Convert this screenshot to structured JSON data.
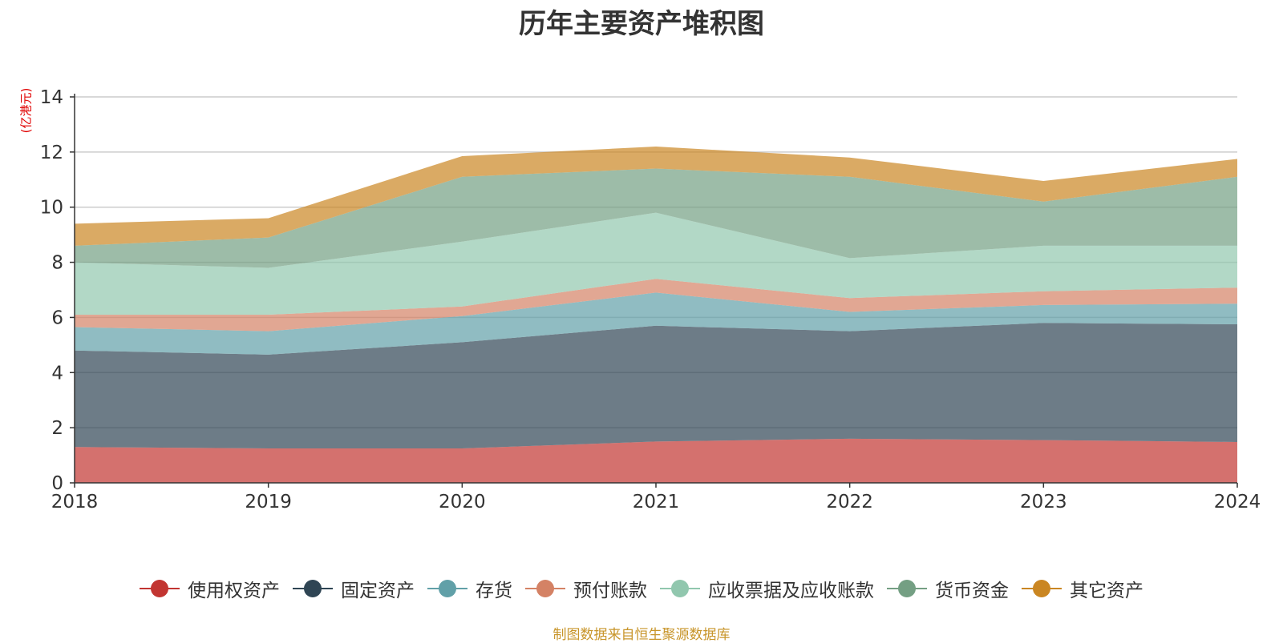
{
  "chart_data": {
    "type": "area",
    "stacked": true,
    "title": "历年主要资产堆积图",
    "y_unit_label": "(亿港元)",
    "x": [
      "2018",
      "2019",
      "2020",
      "2021",
      "2022",
      "2023",
      "2024"
    ],
    "ylim": [
      0,
      14
    ],
    "yticks": [
      0,
      2,
      4,
      6,
      8,
      10,
      12,
      14
    ],
    "grid": true,
    "legend_position": "bottom",
    "series": [
      {
        "name": "使用权资产",
        "color": "#c23531",
        "values": [
          1.3,
          1.25,
          1.25,
          1.5,
          1.6,
          1.55,
          1.48
        ]
      },
      {
        "name": "固定资产",
        "color": "#2f4554",
        "values": [
          3.5,
          3.4,
          3.85,
          4.2,
          3.9,
          4.25,
          4.27
        ]
      },
      {
        "name": "存货",
        "color": "#61a0a8",
        "values": [
          0.85,
          0.85,
          0.95,
          1.2,
          0.7,
          0.65,
          0.75
        ]
      },
      {
        "name": "预付账款",
        "color": "#d48265",
        "values": [
          0.45,
          0.6,
          0.35,
          0.5,
          0.5,
          0.5,
          0.58
        ]
      },
      {
        "name": "应收票据及应收账款",
        "color": "#91c7ae",
        "values": [
          1.9,
          1.7,
          2.35,
          2.4,
          1.45,
          1.65,
          1.52
        ]
      },
      {
        "name": "货币资金",
        "color": "#749f83",
        "values": [
          0.6,
          1.1,
          2.35,
          1.6,
          2.95,
          1.6,
          2.5
        ]
      },
      {
        "name": "其它资产",
        "color": "#ca8622",
        "values": [
          0.8,
          0.7,
          0.75,
          0.8,
          0.7,
          0.75,
          0.65
        ]
      }
    ]
  },
  "source_note": "制图数据来自恒生聚源数据库"
}
